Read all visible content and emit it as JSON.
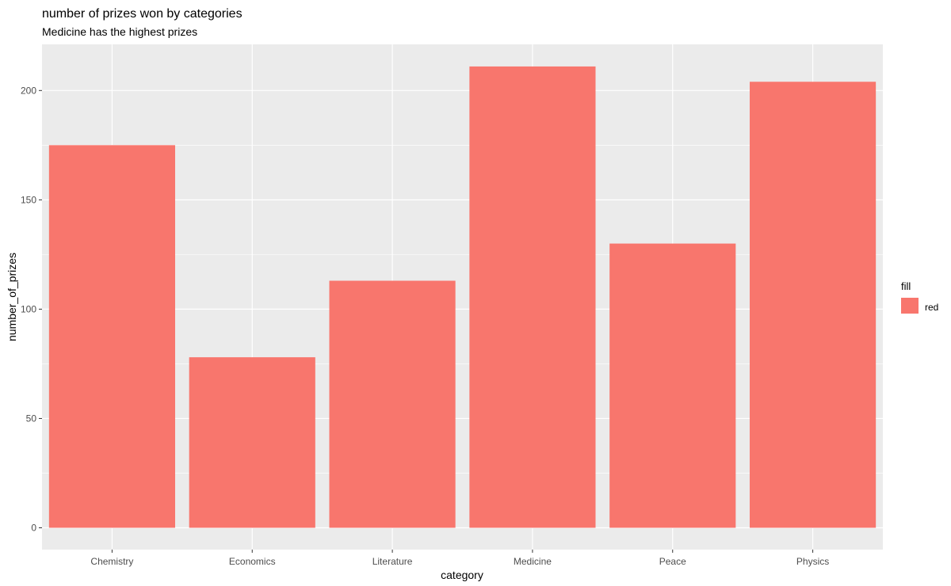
{
  "chart_data": {
    "type": "bar",
    "title": "number of prizes won by categories",
    "subtitle": "Medicine has the highest prizes",
    "xlabel": "category",
    "ylabel": "number_of_prizes",
    "categories": [
      "Chemistry",
      "Economics",
      "Literature",
      "Medicine",
      "Peace",
      "Physics"
    ],
    "series": [
      {
        "name": "red",
        "values": [
          175,
          78,
          113,
          211,
          130,
          204
        ]
      }
    ],
    "ylim": [
      0,
      221
    ],
    "y_ticks": [
      0,
      50,
      100,
      150,
      200
    ],
    "grid": true,
    "legend": {
      "title": "fill",
      "position": "right",
      "entries": [
        "red"
      ]
    },
    "colors": {
      "bar": "#f8766d",
      "panel": "#ebebeb",
      "grid": "#ffffff"
    }
  }
}
